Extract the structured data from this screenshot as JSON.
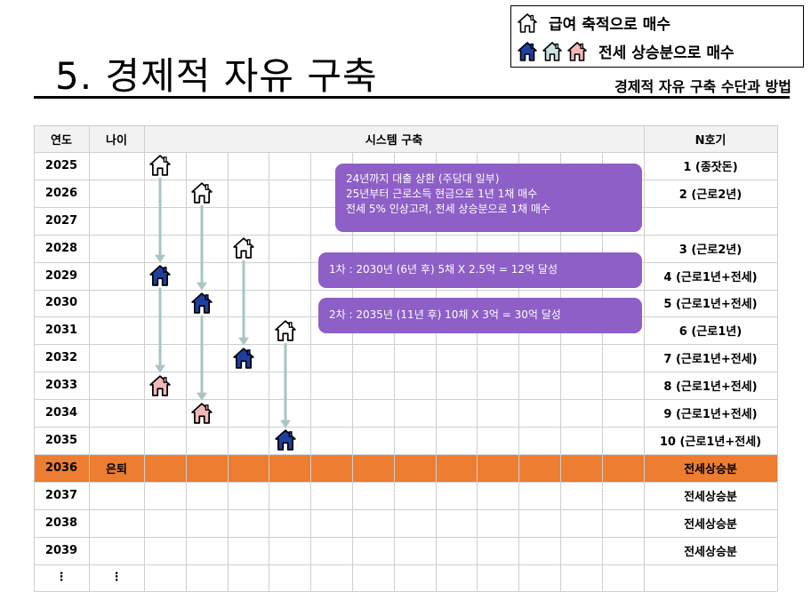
{
  "page": {
    "title": "5. 경제적 자유 구축",
    "subtitle": "경제적 자유 구축 수단과 방법"
  },
  "legend": {
    "row1_label": "급여 축적으로 매수",
    "row2_label": "전세 상승분으로 매수"
  },
  "table": {
    "headers": {
      "year": "연도",
      "age": "나이",
      "system": "시스템 구축",
      "nth": "N호기"
    },
    "rows": [
      {
        "year": "2025",
        "age": "",
        "nth": "1 (종잣돈)"
      },
      {
        "year": "2026",
        "age": "",
        "nth": "2 (근로2년)"
      },
      {
        "year": "2027",
        "age": "",
        "nth": ""
      },
      {
        "year": "2028",
        "age": "",
        "nth": "3 (근로2년)"
      },
      {
        "year": "2029",
        "age": "",
        "nth": "4 (근로1년+전세)"
      },
      {
        "year": "2030",
        "age": "",
        "nth": "5 (근로1년+전세)"
      },
      {
        "year": "2031",
        "age": "",
        "nth": "6 (근로1년)"
      },
      {
        "year": "2032",
        "age": "",
        "nth": "7 (근로1년+전세)"
      },
      {
        "year": "2033",
        "age": "",
        "nth": "8 (근로1년+전세)"
      },
      {
        "year": "2034",
        "age": "",
        "nth": "9 (근로1년+전세)"
      },
      {
        "year": "2035",
        "age": "",
        "nth": "10 (근로1년+전세)"
      },
      {
        "year": "2036",
        "age": "은퇴",
        "nth": "전세상승분"
      },
      {
        "year": "2037",
        "age": "",
        "nth": "전세상승분"
      },
      {
        "year": "2038",
        "age": "",
        "nth": "전세상승분"
      },
      {
        "year": "2039",
        "age": "",
        "nth": "전세상승분"
      },
      {
        "year": "⋮",
        "age": "⋮",
        "nth": ""
      }
    ],
    "highlight_color": "#ed7d31"
  },
  "notes": {
    "note1_line1": "24년까지 대출 상환 (주담대 일부)",
    "note1_line2": "25년부터 근로소득 현금으로 1년 1채 매수",
    "note1_line3": "전세 5% 인상고려, 전세 상승분으로 1채 매수",
    "note2": "1차 : 2030년 (6년  후) 5채 X 2.5억 = 12억 달성",
    "note3": "2차 : 2035년 (11년  후) 10채 X 3억 = 30억 달성"
  },
  "colors": {
    "note_bg": "#8e5fc7",
    "arrow": "#a9c4c4",
    "house_outline": "#000000",
    "house_blue": "#1f3f9e",
    "house_pink": "#f2b8b8",
    "house_teal": "#cfe3e3"
  },
  "icons": {
    "house_outline": "house-outline-icon",
    "house_blue": "house-blue-icon",
    "house_teal": "house-teal-icon",
    "house_pink": "house-pink-icon"
  }
}
